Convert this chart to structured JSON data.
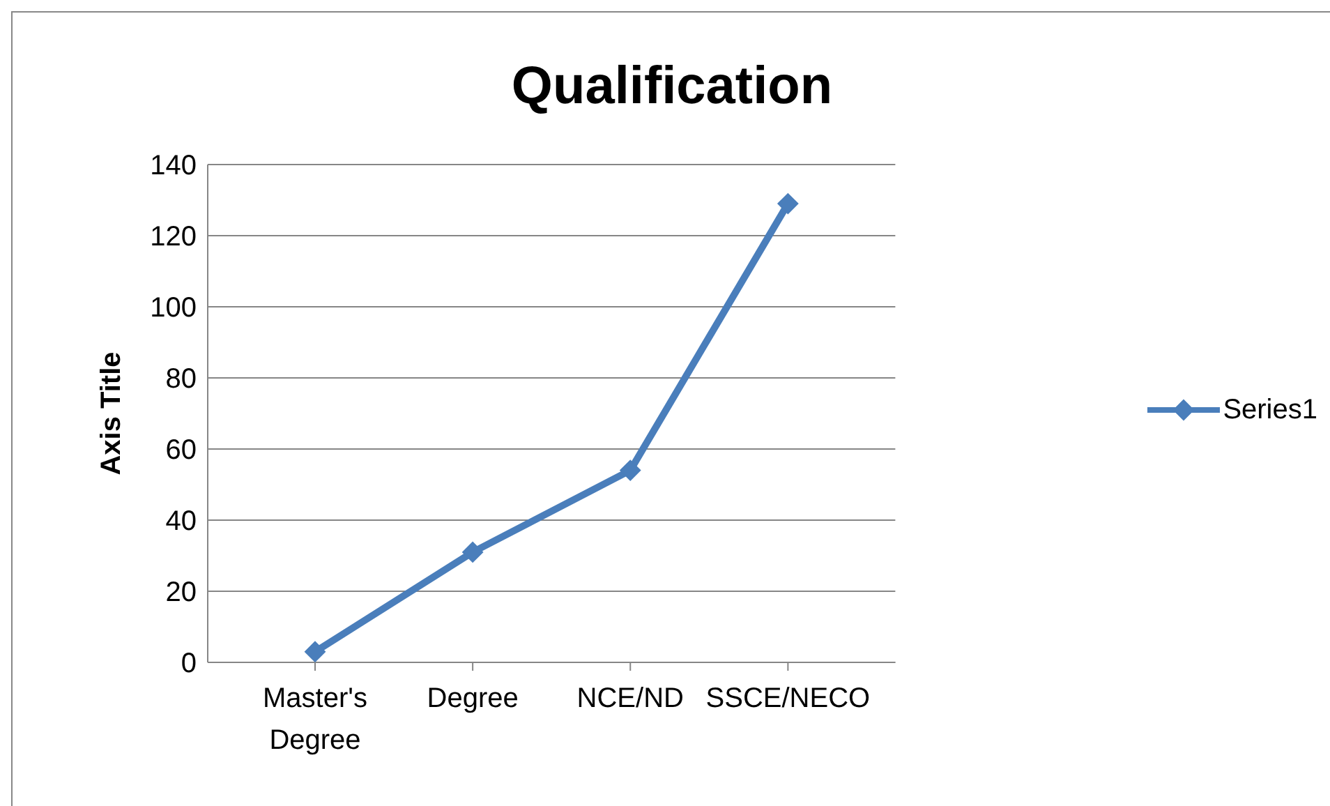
{
  "chart_data": {
    "type": "line",
    "title": "Qualification",
    "ylabel": "Axis Title",
    "categories": [
      "Master's Degree",
      "Degree",
      "NCE/ND",
      "SSCE/NECO"
    ],
    "series": [
      {
        "name": "Series1",
        "color": "#4a7ebb",
        "values": [
          3,
          31,
          54,
          129
        ]
      }
    ],
    "ylim": [
      0,
      140
    ],
    "yticks": [
      0,
      20,
      40,
      60,
      80,
      100,
      120,
      140
    ],
    "grid": "y",
    "legend": "right",
    "marker": "diamond"
  }
}
